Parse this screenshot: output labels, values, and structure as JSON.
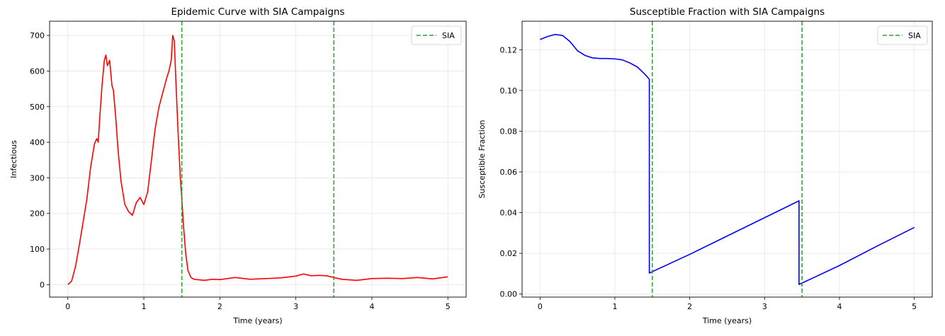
{
  "chart_data": [
    {
      "type": "line",
      "title": "Epidemic Curve with SIA Campaigns",
      "xlabel": "Time (years)",
      "ylabel": "Infectious",
      "xlim": [
        -0.24,
        5.24
      ],
      "ylim": [
        -35,
        740
      ],
      "xticks": [
        0,
        1,
        2,
        3,
        4,
        5
      ],
      "yticks": [
        0,
        100,
        200,
        300,
        400,
        500,
        600,
        700
      ],
      "grid": true,
      "legend_position": "top-right",
      "legend": [
        {
          "label": "SIA",
          "style": "dashed",
          "color": "#2ca02c"
        }
      ],
      "vlines": [
        1.5,
        3.5
      ],
      "series": [
        {
          "name": "Infectious",
          "color": "#ff0000",
          "x": [
            0,
            0.05,
            0.1,
            0.15,
            0.2,
            0.25,
            0.3,
            0.35,
            0.38,
            0.4,
            0.42,
            0.45,
            0.48,
            0.5,
            0.52,
            0.55,
            0.58,
            0.6,
            0.63,
            0.66,
            0.7,
            0.75,
            0.8,
            0.85,
            0.9,
            0.95,
            1.0,
            1.05,
            1.1,
            1.15,
            1.2,
            1.25,
            1.3,
            1.33,
            1.36,
            1.38,
            1.4,
            1.42,
            1.45,
            1.48,
            1.5,
            1.52,
            1.55,
            1.58,
            1.62,
            1.66,
            1.7,
            1.8,
            1.9,
            2.0,
            2.2,
            2.4,
            2.6,
            2.8,
            3.0,
            3.1,
            3.2,
            3.3,
            3.4,
            3.5,
            3.6,
            3.8,
            4.0,
            4.2,
            4.4,
            4.6,
            4.8,
            5.0
          ],
          "y": [
            0,
            10,
            50,
            110,
            175,
            240,
            330,
            395,
            410,
            400,
            470,
            560,
            630,
            645,
            615,
            630,
            560,
            545,
            470,
            380,
            290,
            225,
            205,
            195,
            230,
            245,
            225,
            260,
            350,
            440,
            500,
            540,
            580,
            600,
            630,
            700,
            685,
            580,
            430,
            300,
            240,
            170,
            90,
            40,
            20,
            15,
            14,
            12,
            15,
            14,
            20,
            15,
            17,
            19,
            24,
            30,
            25,
            26,
            25,
            20,
            15,
            12,
            17,
            18,
            17,
            20,
            16,
            22
          ]
        }
      ]
    },
    {
      "type": "line",
      "title": "Susceptible Fraction with SIA Campaigns",
      "xlabel": "Time (years)",
      "ylabel": "Susceptible Fraction",
      "xlim": [
        -0.24,
        5.24
      ],
      "ylim": [
        -0.0015,
        0.134
      ],
      "xticks": [
        0,
        1,
        2,
        3,
        4,
        5
      ],
      "yticks": [
        0.0,
        0.02,
        0.04,
        0.06,
        0.08,
        0.1,
        0.12
      ],
      "ytick_labels": [
        "0.00",
        "0.02",
        "0.04",
        "0.06",
        "0.08",
        "0.10",
        "0.12"
      ],
      "grid": true,
      "legend_position": "top-right",
      "legend": [
        {
          "label": "SIA",
          "style": "dashed",
          "color": "#2ca02c"
        }
      ],
      "vlines": [
        1.5,
        3.5
      ],
      "series": [
        {
          "name": "Susceptible",
          "color": "#0000ff",
          "x": [
            0,
            0.1,
            0.2,
            0.3,
            0.4,
            0.5,
            0.6,
            0.7,
            0.8,
            0.9,
            1.0,
            1.1,
            1.2,
            1.3,
            1.4,
            1.46,
            1.46,
            1.5,
            2.0,
            2.5,
            3.0,
            3.46,
            3.46,
            4.0,
            4.5,
            5.0
          ],
          "y": [
            0.125,
            0.1265,
            0.1275,
            0.127,
            0.124,
            0.1195,
            0.1172,
            0.116,
            0.1157,
            0.1157,
            0.1155,
            0.115,
            0.1135,
            0.1115,
            0.108,
            0.1055,
            0.0103,
            0.011,
            0.0195,
            0.0285,
            0.0375,
            0.0458,
            0.0047,
            0.014,
            0.0235,
            0.0327
          ]
        }
      ]
    }
  ]
}
